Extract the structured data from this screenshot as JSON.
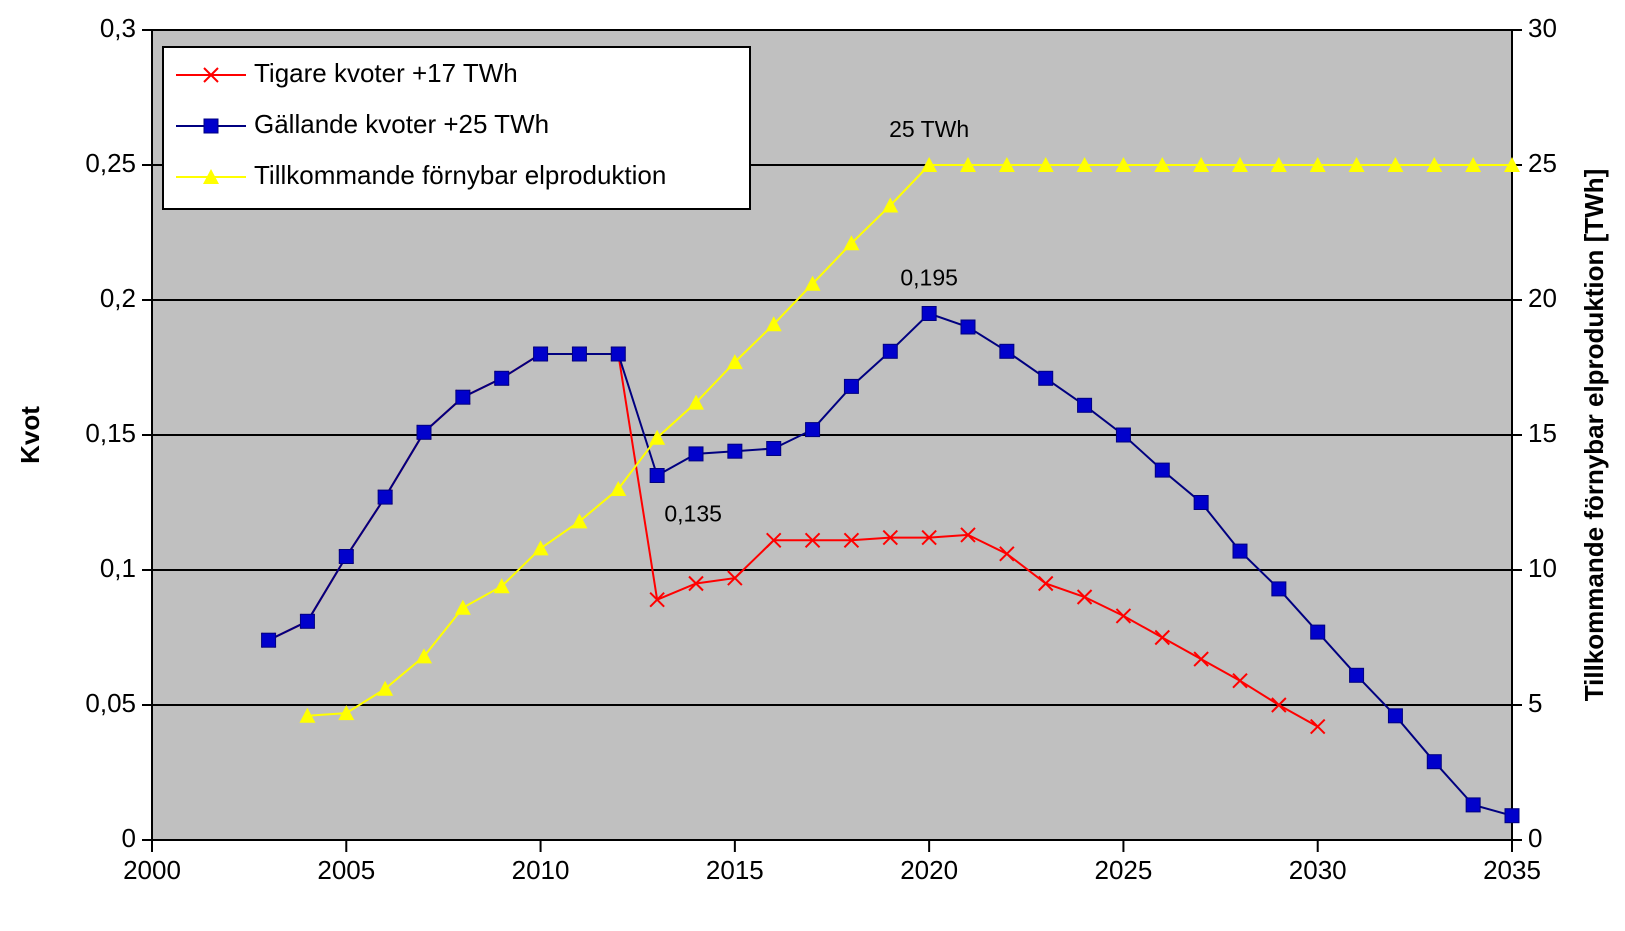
{
  "chart_data": {
    "type": "line",
    "y_label": "Kvot",
    "y2_label": "Tillkommande förnybar elproduktion [TWh]",
    "x": [
      2003,
      2004,
      2005,
      2006,
      2007,
      2008,
      2009,
      2010,
      2011,
      2012,
      2013,
      2014,
      2015,
      2016,
      2017,
      2018,
      2019,
      2020,
      2021,
      2022,
      2023,
      2024,
      2025,
      2026,
      2027,
      2028,
      2029,
      2030,
      2031,
      2032,
      2033,
      2034,
      2035
    ],
    "series": [
      {
        "name": "Tigare kvoter +17 TWh",
        "color": "#ff0000",
        "marker": "x",
        "values": [
          0.074,
          0.081,
          0.105,
          0.127,
          0.151,
          0.164,
          0.171,
          0.18,
          0.18,
          0.18,
          0.089,
          0.095,
          0.097,
          0.111,
          0.111,
          0.111,
          0.112,
          0.112,
          0.113,
          0.106,
          0.095,
          0.09,
          0.083,
          0.075,
          0.067,
          0.059,
          0.05,
          0.042,
          null,
          null,
          null,
          null,
          null
        ]
      },
      {
        "name": "Gällande kvoter +25 TWh",
        "color": "#000080",
        "marker_color": "#0000cc",
        "marker": "square",
        "values": [
          0.074,
          0.081,
          0.105,
          0.127,
          0.151,
          0.164,
          0.171,
          0.18,
          0.18,
          0.18,
          0.135,
          0.143,
          0.144,
          0.145,
          0.152,
          0.168,
          0.181,
          0.195,
          0.19,
          0.181,
          0.171,
          0.161,
          0.15,
          0.137,
          0.125,
          0.107,
          0.093,
          0.077,
          0.061,
          0.046,
          0.029,
          0.013,
          0.009
        ]
      },
      {
        "name": "Tillkommande förnybar elproduktion",
        "color": "#ffff00",
        "marker": "triangle",
        "axis": "y2",
        "values": [
          null,
          4.6,
          4.7,
          5.6,
          6.8,
          8.6,
          9.4,
          10.8,
          11.8,
          13,
          14.9,
          16.2,
          17.7,
          19.1,
          20.6,
          22.1,
          23.5,
          25,
          25,
          25,
          25,
          25,
          25,
          25,
          25,
          25,
          25,
          25,
          25,
          25,
          25,
          25,
          25
        ]
      }
    ],
    "annotations": [
      "25 TWh",
      "0,195",
      "0,135"
    ],
    "xlim": [
      2000,
      2035
    ],
    "xticks": [
      2000,
      2005,
      2010,
      2015,
      2020,
      2025,
      2030,
      2035
    ],
    "ylim": [
      0,
      0.3
    ],
    "yticks": [
      {
        "value": 0,
        "label": "0"
      },
      {
        "value": 0.05,
        "label": "0,05"
      },
      {
        "value": 0.1,
        "label": "0,1"
      },
      {
        "value": 0.15,
        "label": "0,15"
      },
      {
        "value": 0.2,
        "label": "0,2"
      },
      {
        "value": 0.25,
        "label": "0,25"
      },
      {
        "value": 0.3,
        "label": "0,3"
      }
    ],
    "y2lim": [
      0,
      30
    ],
    "y2ticks": [
      0,
      5,
      10,
      15,
      20,
      25,
      30
    ],
    "grid": true,
    "legend": "upper left",
    "background": "#c0c0c0"
  }
}
